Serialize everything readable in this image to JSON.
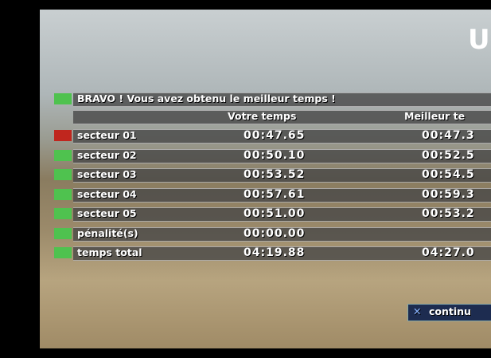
{
  "logo": "U",
  "results": {
    "title": "BRAVO ! Vous avez obtenu le meilleur temps !",
    "headers": [
      "Votre temps",
      "Meilleur te"
    ],
    "rows": [
      {
        "label": "secteur 01",
        "time": "00:47.65",
        "best": "00:47.3",
        "marker": "red"
      },
      {
        "label": "secteur 02",
        "time": "00:50.10",
        "best": "00:52.5",
        "marker": "green"
      },
      {
        "label": "secteur 03",
        "time": "00:53.52",
        "best": "00:54.5",
        "marker": "green"
      },
      {
        "label": "secteur 04",
        "time": "00:57.61",
        "best": "00:59.3",
        "marker": "green"
      },
      {
        "label": "secteur 05",
        "time": "00:51.00",
        "best": "00:53.2",
        "marker": "green"
      },
      {
        "label": "pénalité(s)",
        "time": "00:00.00",
        "best": null,
        "marker": "green"
      },
      {
        "label": "temps total",
        "time": "04:19.88",
        "best": "04:27.0",
        "marker": "green"
      }
    ]
  },
  "button": "continu"
}
